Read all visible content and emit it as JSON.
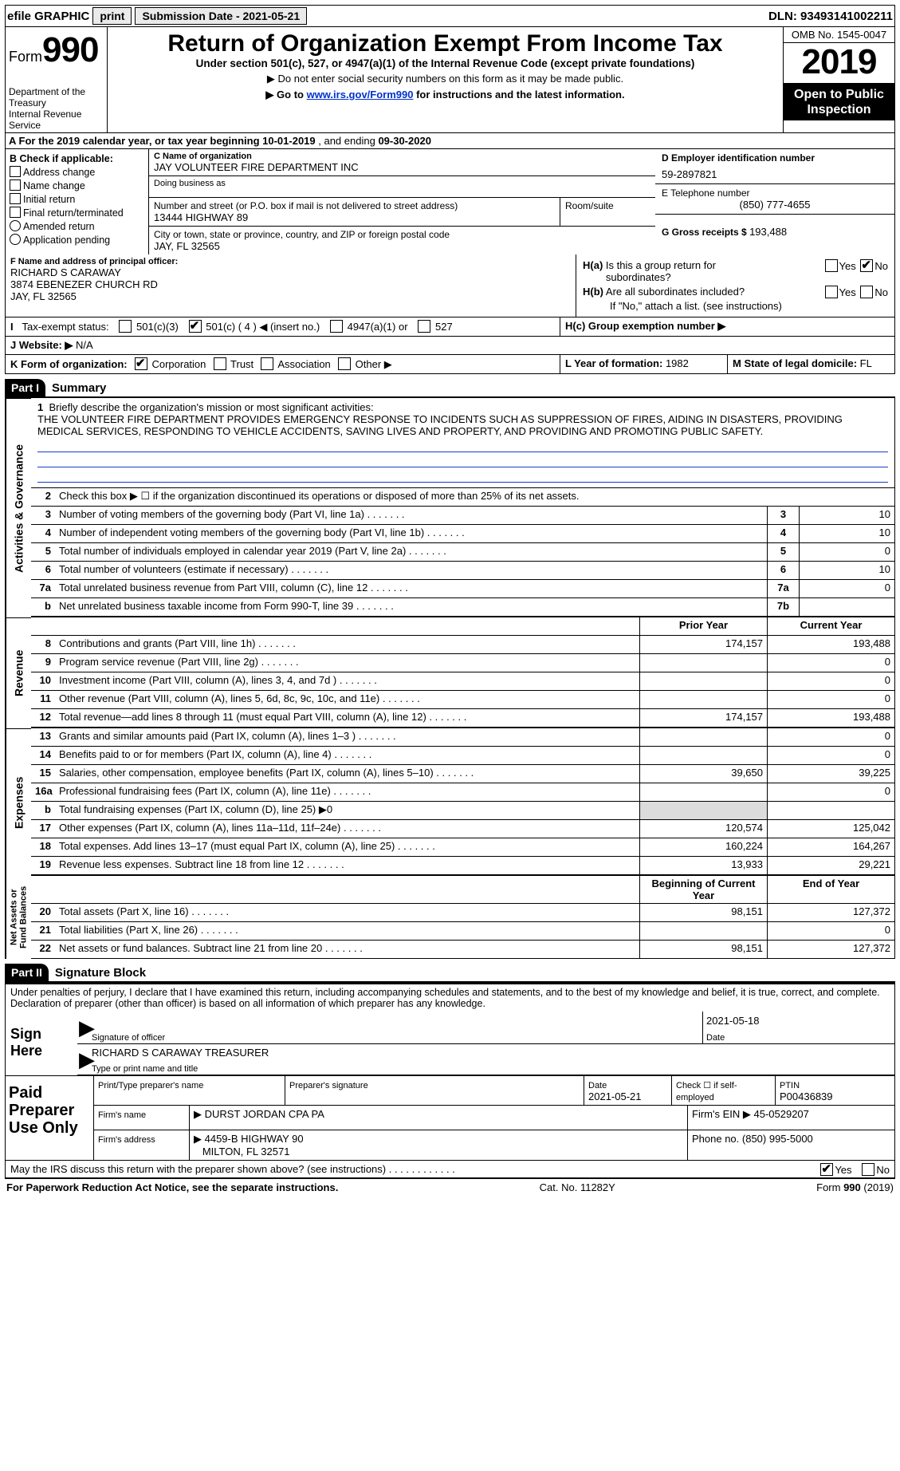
{
  "topbar": {
    "efile": "efile GRAPHIC",
    "print": "print",
    "sub_label": "Submission Date - ",
    "sub_date": "2021-05-21",
    "dln_label": "DLN: ",
    "dln": "93493141002211"
  },
  "header": {
    "form_prefix": "Form",
    "form_no": "990",
    "dept": "Department of the Treasury\nInternal Revenue Service",
    "title": "Return of Organization Exempt From Income Tax",
    "sub1": "Under section 501(c), 527, or 4947(a)(1) of the Internal Revenue Code (except private foundations)",
    "sub2": "▶ Do not enter social security numbers on this form as it may be made public.",
    "sub3a": "▶ Go to ",
    "sub3link": "www.irs.gov/Form990",
    "sub3b": " for instructions and the latest information.",
    "omb": "OMB No. 1545-0047",
    "year": "2019",
    "open": "Open to Public Inspection"
  },
  "rowA": {
    "text_a": "A For the 2019 calendar year, or tax year beginning ",
    "begin": "10-01-2019",
    "mid": "   , and ending ",
    "end": "09-30-2020"
  },
  "colB": {
    "hdr": "B Check if applicable:",
    "items": [
      "Address change",
      "Name change",
      "Initial return",
      "Final return/terminated",
      "Amended return",
      "Application pending"
    ]
  },
  "colC": {
    "name_lbl": "C Name of organization",
    "name": "JAY VOLUNTEER FIRE DEPARTMENT INC",
    "dba_lbl": "Doing business as",
    "dba": "",
    "addr_lbl": "Number and street (or P.O. box if mail is not delivered to street address)",
    "room_lbl": "Room/suite",
    "addr": "13444 HIGHWAY 89",
    "city_lbl": "City or town, state or province, country, and ZIP or foreign postal code",
    "city": "JAY, FL  32565"
  },
  "colD": {
    "ein_lbl": "D Employer identification number",
    "ein": "59-2897821",
    "tel_lbl": "E Telephone number",
    "tel": "(850) 777-4655",
    "gross_lbl": "G Gross receipts $ ",
    "gross": "193,488"
  },
  "midF": {
    "lbl": "F Name and address of principal officer:",
    "name": "RICHARD S CARAWAY",
    "addr1": "3874 EBENEZER CHURCH RD",
    "addr2": "JAY, FL  32565"
  },
  "midH": {
    "ha": "H(a)  Is this a group return for subordinates?",
    "hb": "H(b)  Are all subordinates included?",
    "hb2": "If \"No,\" attach a list. (see instructions)",
    "hc": "H(c)  Group exemption number ▶",
    "yes": "Yes",
    "no": "No"
  },
  "rowI": {
    "lbl": "I    Tax-exempt status:",
    "o1": "501(c)(3)",
    "o2": "501(c) ( 4 ) ◀ (insert no.)",
    "o3": "4947(a)(1) or",
    "o4": "527"
  },
  "rowJ": {
    "lbl": "J   Website: ▶",
    "val": " N/A"
  },
  "rowK": {
    "lbl": "K Form of organization:",
    "o1": "Corporation",
    "o2": "Trust",
    "o3": "Association",
    "o4": "Other ▶"
  },
  "rowL": {
    "lbl": "L Year of formation: ",
    "val": "1982"
  },
  "rowM": {
    "lbl": "M State of legal domicile: ",
    "val": "FL"
  },
  "part1": {
    "tag": "Part I",
    "title": "Summary"
  },
  "summary": {
    "q1": "Briefly describe the organization's mission or most significant activities:",
    "mission": "THE VOLUNTEER FIRE DEPARTMENT PROVIDES EMERGENCY RESPONSE TO INCIDENTS SUCH AS SUPPRESSION OF FIRES, AIDING IN DISASTERS, PROVIDING MEDICAL SERVICES, RESPONDING TO VEHICLE ACCIDENTS, SAVING LIVES AND PROPERTY, AND PROVIDING AND PROMOTING PUBLIC SAFETY.",
    "q2": "Check this box ▶ ☐  if the organization discontinued its operations or disposed of more than 25% of its net assets.",
    "rows_gov": [
      {
        "n": "3",
        "t": "Number of voting members of the governing body (Part VI, line 1a)",
        "box": "3",
        "v": "10"
      },
      {
        "n": "4",
        "t": "Number of independent voting members of the governing body (Part VI, line 1b)",
        "box": "4",
        "v": "10"
      },
      {
        "n": "5",
        "t": "Total number of individuals employed in calendar year 2019 (Part V, line 2a)",
        "box": "5",
        "v": "0"
      },
      {
        "n": "6",
        "t": "Total number of volunteers (estimate if necessary)",
        "box": "6",
        "v": "10"
      },
      {
        "n": "7a",
        "t": "Total unrelated business revenue from Part VIII, column (C), line 12",
        "box": "7a",
        "v": "0"
      },
      {
        "n": "b",
        "t": "Net unrelated business taxable income from Form 990-T, line 39",
        "box": "7b",
        "v": ""
      }
    ],
    "col_hdr_prior": "Prior Year",
    "col_hdr_curr": "Current Year",
    "rev": [
      {
        "n": "8",
        "t": "Contributions and grants (Part VIII, line 1h)",
        "p": "174,157",
        "c": "193,488"
      },
      {
        "n": "9",
        "t": "Program service revenue (Part VIII, line 2g)",
        "p": "",
        "c": "0"
      },
      {
        "n": "10",
        "t": "Investment income (Part VIII, column (A), lines 3, 4, and 7d )",
        "p": "",
        "c": "0"
      },
      {
        "n": "11",
        "t": "Other revenue (Part VIII, column (A), lines 5, 6d, 8c, 9c, 10c, and 11e)",
        "p": "",
        "c": "0"
      },
      {
        "n": "12",
        "t": "Total revenue—add lines 8 through 11 (must equal Part VIII, column (A), line 12)",
        "p": "174,157",
        "c": "193,488"
      }
    ],
    "exp": [
      {
        "n": "13",
        "t": "Grants and similar amounts paid (Part IX, column (A), lines 1–3 )",
        "p": "",
        "c": "0"
      },
      {
        "n": "14",
        "t": "Benefits paid to or for members (Part IX, column (A), line 4)",
        "p": "",
        "c": "0"
      },
      {
        "n": "15",
        "t": "Salaries, other compensation, employee benefits (Part IX, column (A), lines 5–10)",
        "p": "39,650",
        "c": "39,225"
      },
      {
        "n": "16a",
        "t": "Professional fundraising fees (Part IX, column (A), line 11e)",
        "p": "",
        "c": "0"
      },
      {
        "n": "b",
        "t": "Total fundraising expenses (Part IX, column (D), line 25) ▶0",
        "p": "",
        "c": "",
        "shade": true
      },
      {
        "n": "17",
        "t": "Other expenses (Part IX, column (A), lines 11a–11d, 11f–24e)",
        "p": "120,574",
        "c": "125,042"
      },
      {
        "n": "18",
        "t": "Total expenses. Add lines 13–17 (must equal Part IX, column (A), line 25)",
        "p": "160,224",
        "c": "164,267"
      },
      {
        "n": "19",
        "t": "Revenue less expenses. Subtract line 18 from line 12",
        "p": "13,933",
        "c": "29,221"
      }
    ],
    "net_hdr_b": "Beginning of Current Year",
    "net_hdr_e": "End of Year",
    "net": [
      {
        "n": "20",
        "t": "Total assets (Part X, line 16)",
        "p": "98,151",
        "c": "127,372"
      },
      {
        "n": "21",
        "t": "Total liabilities (Part X, line 26)",
        "p": "",
        "c": "0"
      },
      {
        "n": "22",
        "t": "Net assets or fund balances. Subtract line 21 from line 20",
        "p": "98,151",
        "c": "127,372"
      }
    ]
  },
  "part2": {
    "tag": "Part II",
    "title": "Signature Block"
  },
  "sig": {
    "decl": "Under penalties of perjury, I declare that I have examined this return, including accompanying schedules and statements, and to the best of my knowledge and belief, it is true, correct, and complete. Declaration of preparer (other than officer) is based on all information of which preparer has any knowledge.",
    "sign_here": "Sign Here",
    "sig_officer": "Signature of officer",
    "date_lbl": "Date",
    "date": "2021-05-18",
    "officer": "RICHARD S CARAWAY  TREASURER",
    "type_lbl": "Type or print name and title"
  },
  "paid": {
    "lab": "Paid Preparer Use Only",
    "h1": "Print/Type preparer's name",
    "h2": "Preparer's signature",
    "h3_l": "Date",
    "h3": "2021-05-21",
    "h4": "Check ☐ if self-employed",
    "h5_l": "PTIN",
    "h5": "P00436839",
    "firm_name_l": "Firm's name    ▶ ",
    "firm_name": "DURST JORDAN CPA PA",
    "firm_ein_l": "Firm's EIN ▶ ",
    "firm_ein": "45-0529207",
    "firm_addr_l": "Firm's address ▶ ",
    "firm_addr": "4459-B HIGHWAY 90",
    "firm_city": "MILTON, FL  32571",
    "phone_l": "Phone no. ",
    "phone": "(850) 995-5000"
  },
  "discuss": {
    "q": "May the IRS discuss this return with the preparer shown above? (see instructions)",
    "yes": "Yes",
    "no": "No"
  },
  "footer": {
    "left": "For Paperwork Reduction Act Notice, see the separate instructions.",
    "mid": "Cat. No. 11282Y",
    "right": "Form 990 (2019)"
  }
}
